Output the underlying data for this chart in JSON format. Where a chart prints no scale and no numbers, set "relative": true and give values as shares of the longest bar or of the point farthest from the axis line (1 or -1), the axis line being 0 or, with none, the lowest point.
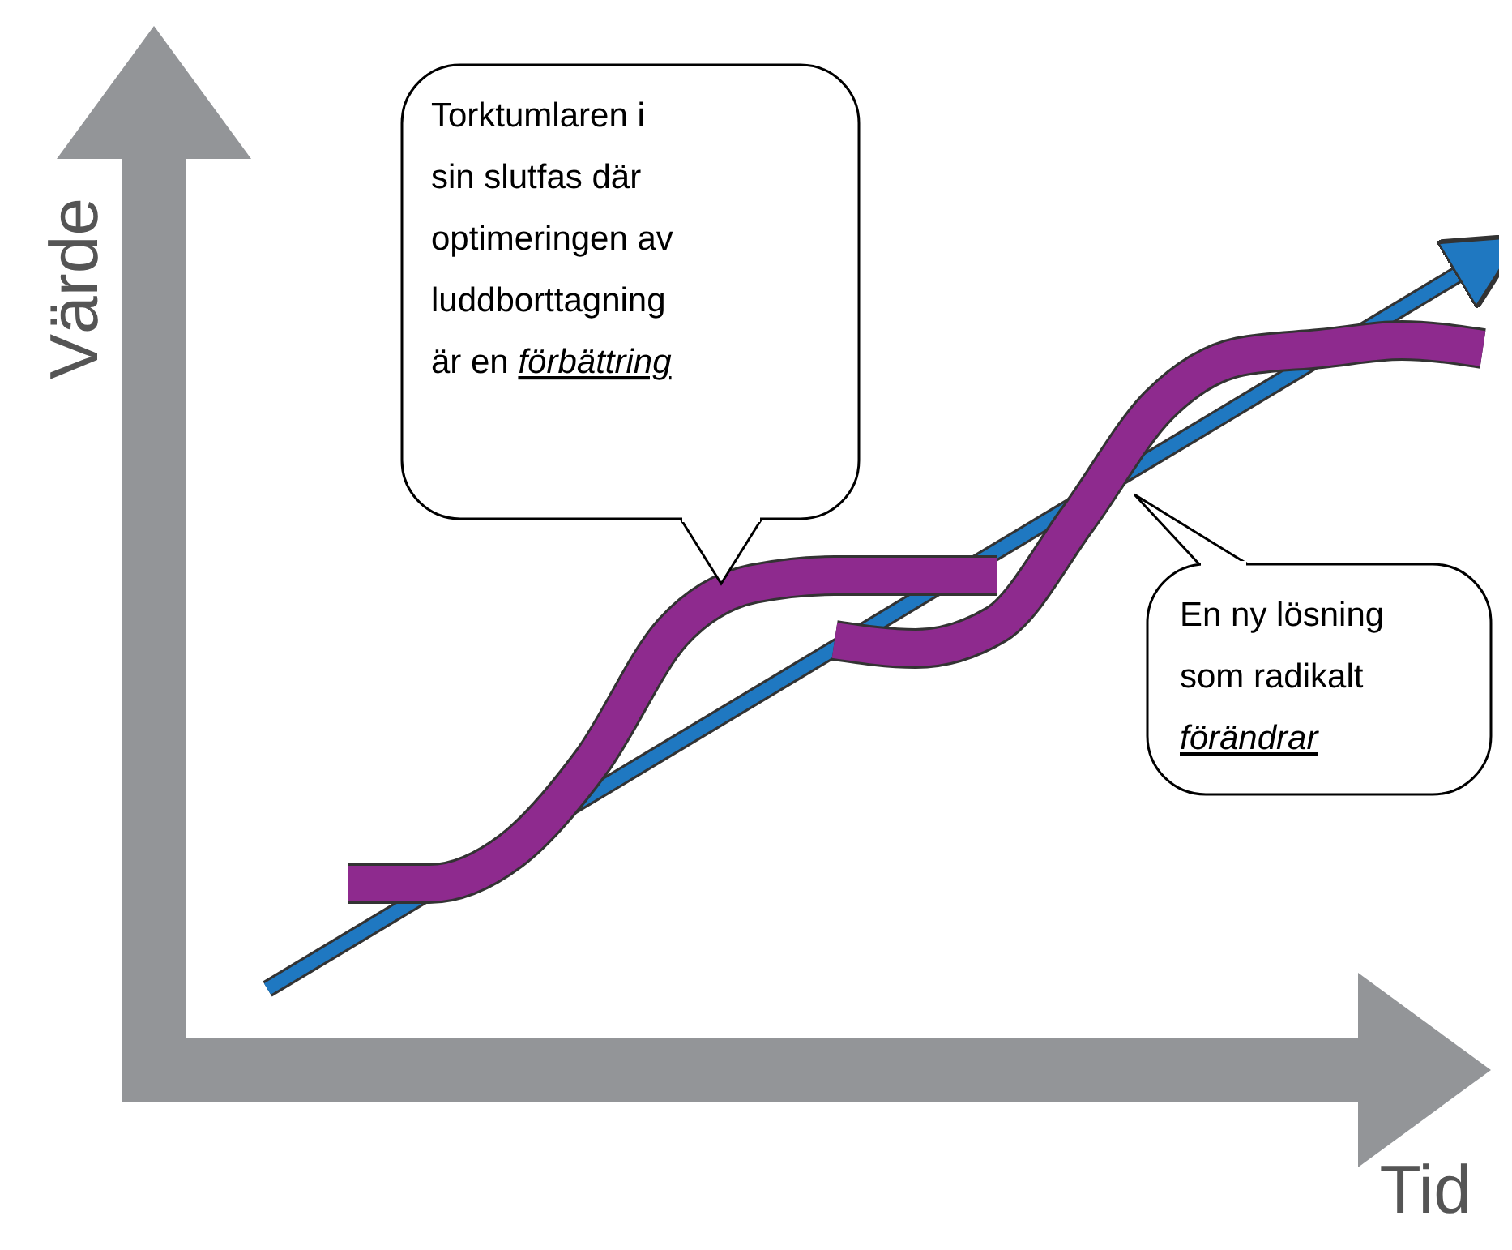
{
  "chart_data": {
    "type": "line",
    "relative": true,
    "xlabel": "Tid",
    "ylabel": "Värde",
    "categories": [
      null,
      null,
      null,
      null,
      null,
      null,
      null,
      null,
      null,
      null,
      null,
      null,
      null,
      null,
      null,
      null
    ],
    "series": [
      {
        "color": "#1f78c1",
        "values": [
          0.1,
          0.16,
          0.22,
          0.28,
          0.34,
          0.4,
          0.46,
          0.52,
          0.58,
          0.64,
          0.7,
          0.76,
          0.82,
          0.88,
          0.94,
          1.0
        ]
      },
      {
        "color": "#8e2a8e",
        "values": [
          null,
          0.23,
          0.23,
          0.27,
          0.38,
          0.54,
          0.6,
          0.61,
          0.61,
          0.61,
          null,
          null,
          null,
          null,
          null,
          null
        ]
      },
      {
        "color": "#8e2a8e",
        "values": [
          null,
          null,
          null,
          null,
          null,
          null,
          null,
          0.53,
          0.52,
          0.55,
          0.68,
          0.82,
          0.88,
          0.89,
          0.9,
          0.89
        ]
      }
    ],
    "annotations": [
      "Torktumlaren i sin slutfas där optimeringen av luddborttagning är en förbättring",
      "En ny lösning som radikalt förändrar"
    ]
  }
}
